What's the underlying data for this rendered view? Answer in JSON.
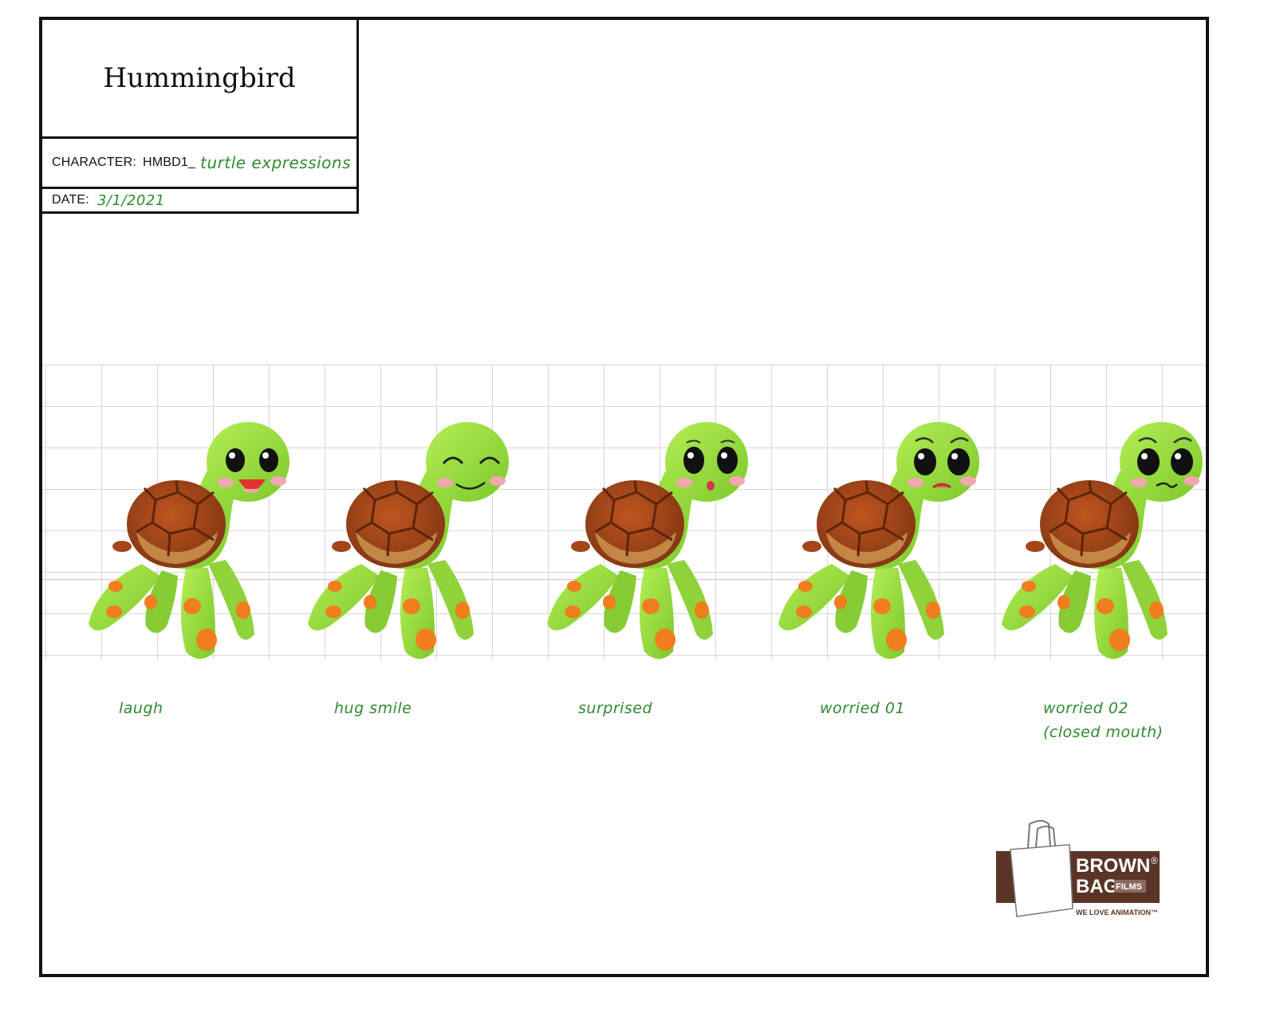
{
  "title_block": {
    "project_title": "Hummingbird",
    "character_label": "CHARACTER:",
    "character_code": "HMBD1_",
    "character_name": "turtle expressions",
    "date_label": "DATE:",
    "date_value": "3/1/2021"
  },
  "expressions": [
    {
      "label": "laugh",
      "sublabel": ""
    },
    {
      "label": "hug smile",
      "sublabel": ""
    },
    {
      "label": "surprised",
      "sublabel": ""
    },
    {
      "label": "worried 01",
      "sublabel": ""
    },
    {
      "label": "worried 02",
      "sublabel": "(closed mouth)"
    }
  ],
  "logo": {
    "line1": "BROWN",
    "line2": "BAG",
    "line2_suffix": "FILMS",
    "tagline": "WE LOVE ANIMATION™",
    "registered": "®"
  },
  "colors": {
    "border": "#111111",
    "handwriting": "#2e8b2e",
    "turtle_skin": "#9ee03f",
    "turtle_spots": "#f07d1e",
    "shell": "#a4461a",
    "cheek": "#f4a6b5",
    "logo_brown": "#5a3527"
  }
}
